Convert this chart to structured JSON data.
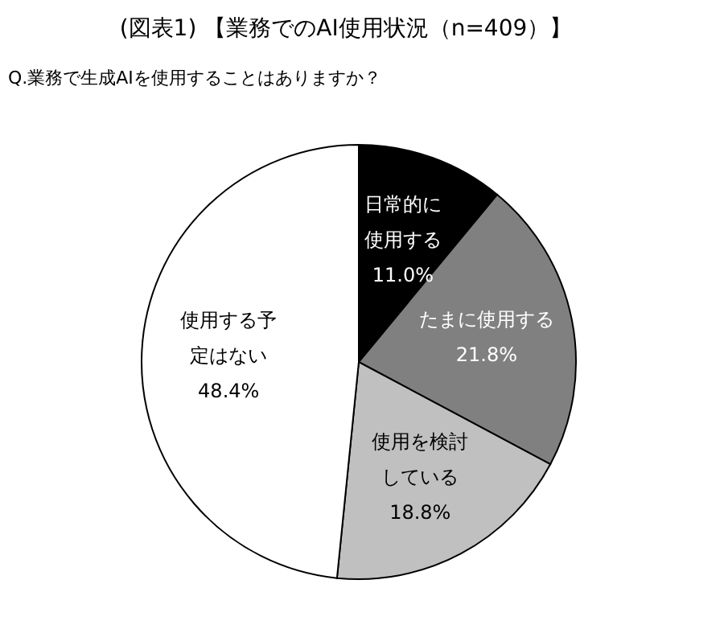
{
  "chart_data": {
    "type": "pie",
    "title": "(図表1) 【業務でのAI使用状況（n=409）】",
    "subtitle": "Q.業務で生成AIを使用することはありますか？",
    "categories": [
      "日常的に使用する",
      "たまに使用する",
      "使用を検討している",
      "使用する予定はない"
    ],
    "values": [
      11.0,
      21.8,
      18.8,
      48.4
    ],
    "colors": [
      "#000000",
      "#808080",
      "#c0c0c0",
      "#ffffff"
    ],
    "value_labels": [
      "11.0%",
      "21.8%",
      "18.8%",
      "48.4%"
    ]
  }
}
